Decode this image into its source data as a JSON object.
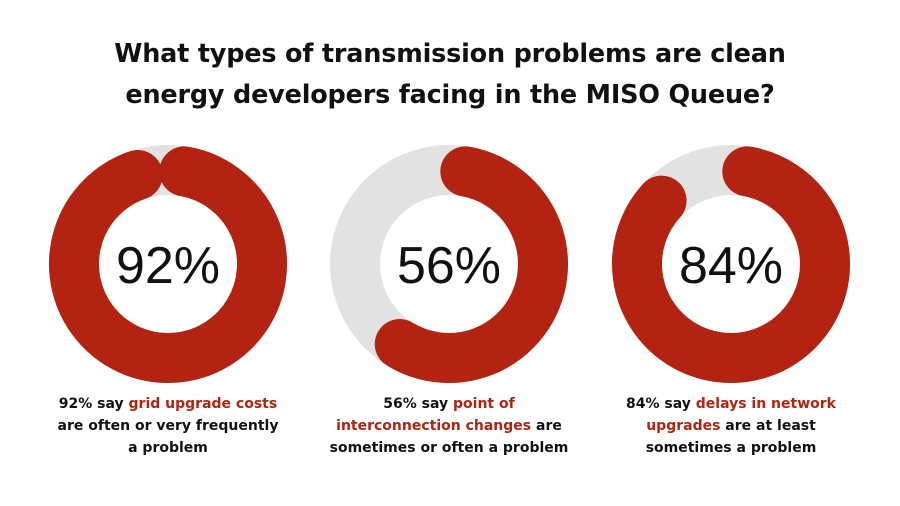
{
  "title": {
    "line1": "What types of transmission problems are clean",
    "line2": "energy developers facing in the MISO Queue?"
  },
  "colors": {
    "accent": "#b22312",
    "track": "#e2e2e2",
    "text": "#111111"
  },
  "chart_data": [
    {
      "type": "pie",
      "style": "donut",
      "value": 92,
      "label": "92%",
      "caption": {
        "lead": "92% say ",
        "highlight": "grid upgrade costs",
        "tail1": "are often or very frequently",
        "tail2": "a problem"
      }
    },
    {
      "type": "pie",
      "style": "donut",
      "value": 56,
      "label": "56%",
      "caption": {
        "lead": "56% say ",
        "highlight1": "point of",
        "highlight2": "interconnection changes",
        "tail1": " are",
        "tail2": "sometimes or often a problem"
      }
    },
    {
      "type": "pie",
      "style": "donut",
      "value": 84,
      "label": "84%",
      "caption": {
        "lead": "84% say ",
        "highlight1": "delays in network",
        "highlight2": "upgrades",
        "tail1": " are at least",
        "tail2": "sometimes a problem"
      }
    }
  ]
}
